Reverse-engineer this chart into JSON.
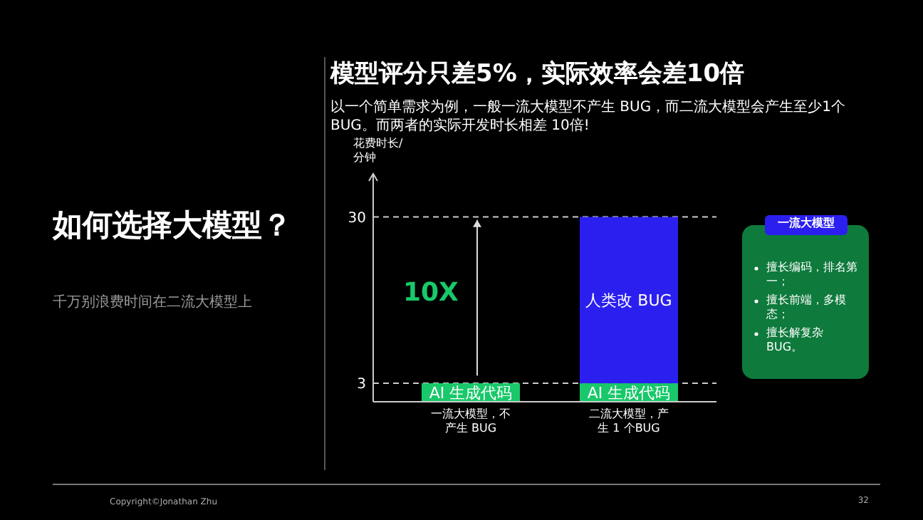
{
  "chart_data": {
    "type": "bar",
    "title": "模型评分只差5%，实际效率会差10倍",
    "subtitle": "以一个简单需求为例，一般一流大模型不产生 BUG，而二流大模型会产生至少1个BUG。而两者的实际开发时长相差 10倍!",
    "ylabel": "花费时长/分钟",
    "categories": [
      "一流大模型，不产生 BUG",
      "二流大模型，产生 1 个BUG"
    ],
    "series": [
      {
        "name": "AI 生成代码",
        "color": "#19c86a",
        "values": [
          3,
          3
        ]
      },
      {
        "name": "人类改 BUG",
        "color": "#2b1ff0",
        "values": [
          null,
          27
        ]
      }
    ],
    "stacked": true,
    "ylim": [
      0,
      37
    ],
    "yticks": [
      3,
      30
    ],
    "grid": false,
    "ref_lines": [
      {
        "axis": "y",
        "value": 3,
        "color": "#cccccc",
        "line_style": "dashed"
      },
      {
        "axis": "y",
        "value": 30,
        "color": "#cccccc",
        "line_style": "dashed"
      }
    ],
    "annotations": [
      "10X",
      "如何选择大模型？",
      "千万别浪费时间在二流大模型上",
      "一流大模型",
      "擅长编码，排名第一；",
      "擅长前端，多模态；",
      "擅长解复杂 BUG。",
      "Copyright©Jonathan Zhu",
      "32"
    ]
  }
}
